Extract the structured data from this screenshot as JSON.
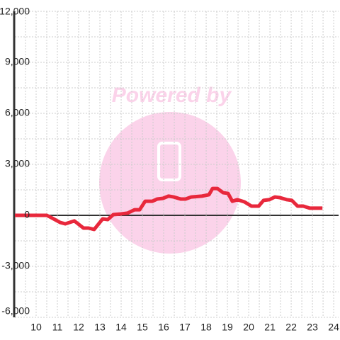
{
  "chart_data": {
    "type": "line",
    "x": [
      9.0,
      10.0,
      10.5,
      10.7,
      11.13,
      11.37,
      11.8,
      12.23,
      12.47,
      12.73,
      13.13,
      13.37,
      13.63,
      13.97,
      14.3,
      14.63,
      14.87,
      15.13,
      15.47,
      15.7,
      15.97,
      16.23,
      16.47,
      16.8,
      17.03,
      17.3,
      17.8,
      18.13,
      18.3,
      18.53,
      18.8,
      19.03,
      19.23,
      19.47,
      19.8,
      20.13,
      20.47,
      20.7,
      20.97,
      21.23,
      21.47,
      21.8,
      22.03,
      22.3,
      22.57,
      22.87,
      23.47
    ],
    "series": [
      {
        "color": "#e8283c",
        "values": [
          0,
          0,
          0,
          -125,
          -420,
          -500,
          -330,
          -750,
          -750,
          -830,
          -210,
          -250,
          40,
          80,
          130,
          330,
          330,
          830,
          830,
          960,
          1000,
          1130,
          1080,
          960,
          960,
          1080,
          1130,
          1210,
          1580,
          1580,
          1330,
          1290,
          830,
          920,
          790,
          540,
          540,
          880,
          920,
          1080,
          1040,
          920,
          880,
          540,
          540,
          420,
          420
        ]
      }
    ],
    "xlim": [
      9,
      24.23
    ],
    "xticks": [
      10,
      11,
      12,
      13,
      14,
      15,
      16,
      17,
      18,
      19,
      20,
      21,
      22,
      23,
      24
    ],
    "x_minor_ticks": [
      9.5,
      10.5,
      11.5,
      12.5,
      13.5,
      14.5,
      15.5,
      16.5,
      17.5,
      18.5,
      19.5,
      20.5,
      21.5,
      22.5,
      23.5
    ],
    "ylim": [
      -6000,
      12000
    ],
    "yticks": [
      {
        "value": 12000,
        "label": "12,000"
      },
      {
        "value": 9000,
        "label": "9,000"
      },
      {
        "value": 6000,
        "label": "6,000"
      },
      {
        "value": 3000,
        "label": "3,000"
      },
      0,
      {
        "value": -3000,
        "label": "-3,000"
      },
      {
        "value": -6000,
        "label": "-6,000"
      }
    ],
    "y_minor_ticks": [
      10500,
      7500,
      4500,
      1500,
      -1500,
      -4500
    ],
    "grid": true,
    "watermark": "Powered by"
  }
}
